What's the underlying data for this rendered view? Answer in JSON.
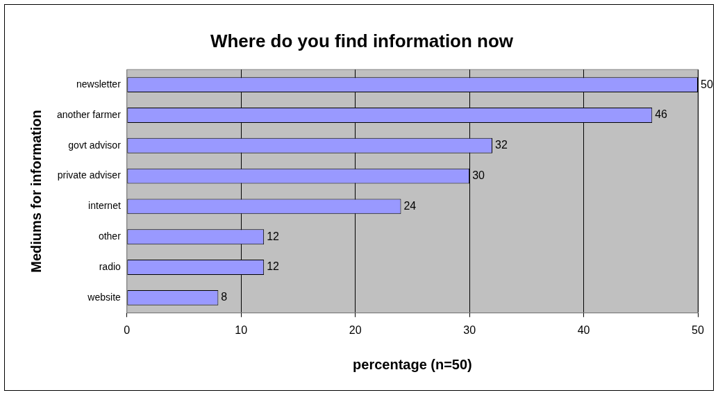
{
  "chart_data": {
    "type": "bar",
    "orientation": "horizontal",
    "title": "Where do you find information now",
    "xlabel": "percentage (n=50)",
    "ylabel": "Mediums for information",
    "categories": [
      "newsletter",
      "another farmer",
      "govt advisor",
      "private adviser",
      "internet",
      "other",
      "radio",
      "website"
    ],
    "values": [
      50,
      46,
      32,
      30,
      24,
      12,
      12,
      8
    ],
    "color": "#9999ff",
    "xlim": [
      0,
      50
    ],
    "xticks": [
      0,
      10,
      20,
      30,
      40,
      50
    ],
    "grid": "x",
    "data_labels": true
  }
}
